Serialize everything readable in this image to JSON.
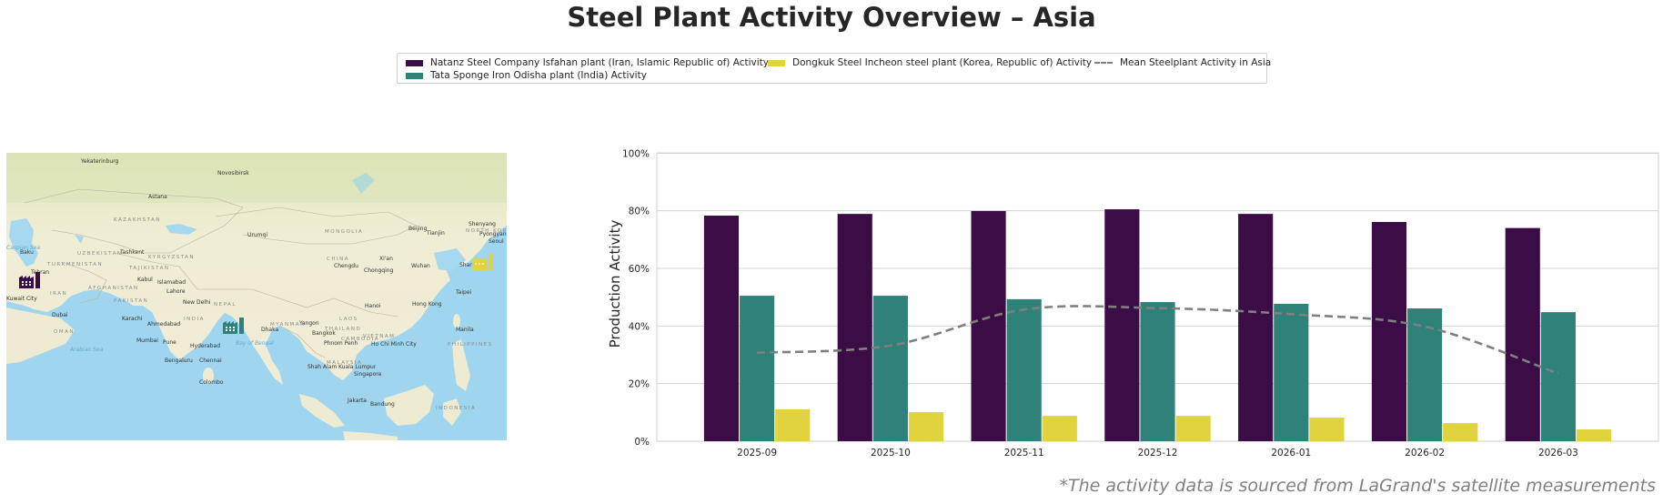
{
  "title": "Steel Plant Activity Overview – Asia",
  "legend": {
    "items": [
      {
        "label": "Natanz Steel Company Isfahan plant (Iran, Islamic Republic of) Activity",
        "color": "#3b0c46",
        "kind": "bar"
      },
      {
        "label": "Tata Sponge Iron Odisha plant (India) Activity",
        "color": "#2e8279",
        "kind": "bar"
      },
      {
        "label": "Dongkuk Steel Incheon steel plant (Korea, Republic of) Activity",
        "color": "#e0d33e",
        "kind": "bar"
      },
      {
        "label": "Mean Steelplant Activity in Asia",
        "color": "#7f7f7f",
        "kind": "dashed-line"
      }
    ]
  },
  "map": {
    "cities": [
      "Yekaterinburg",
      "Novosibirsk",
      "Astana",
      "Urumqi",
      "Baku",
      "Tashkent",
      "Tehran",
      "Kabul",
      "Islamabad",
      "Lahore",
      "New Delhi",
      "Kuwait City",
      "Dubai",
      "Karachi",
      "Ahmedabad",
      "Mumbai",
      "Pune",
      "Hyderabad",
      "Bengaluru",
      "Chennai",
      "Colombo",
      "Dhaka",
      "Beijing",
      "Tianjin",
      "Shenyang",
      "Pyongyang",
      "Seoul",
      "Shanghai",
      "Chengdu",
      "Chongqing",
      "Wuhan",
      "Xi'an",
      "Taipei",
      "Hong Kong",
      "Hanoi",
      "Yangon",
      "Bangkok",
      "Phnom Penh",
      "Ho Chi Minh City",
      "Manila",
      "Kuala Lumpur",
      "Singapore",
      "Shah Alam",
      "Jakarta",
      "Bandung"
    ],
    "countries": [
      "KAZAKHSTAN",
      "MONGOLIA",
      "UZBEKISTAN",
      "KYRGYZSTAN",
      "TAJIKISTAN",
      "TURKMENISTAN",
      "AFGHANISTAN",
      "PAKISTAN",
      "IRAN",
      "OMAN",
      "INDIA",
      "NEPAL",
      "CHINA",
      "MYANMAR (BURMA)",
      "LAOS",
      "THAILAND",
      "VIETNAM",
      "CAMBODIA",
      "MALAYSIA",
      "PHILIPPINES",
      "INDONESIA",
      "NORTH KOREA",
      "SOUTH KOREA",
      "BANGLADESH"
    ],
    "seas": [
      "Arabian Sea",
      "Bay of Bengal",
      "Caspian Sea"
    ],
    "markers": [
      {
        "name": "Natanz Steel Company Isfahan plant",
        "icon": "factory-icon",
        "color": "#3b0c46"
      },
      {
        "name": "Tata Sponge Iron Odisha plant",
        "icon": "factory-icon",
        "color": "#2e8279"
      },
      {
        "name": "Dongkuk Steel Incheon steel plant",
        "icon": "factory-icon",
        "color": "#e0d33e"
      }
    ]
  },
  "chart_data": {
    "type": "bar",
    "title": "",
    "xlabel": "",
    "ylabel": "Production Activity",
    "ylim": [
      0,
      100
    ],
    "yticks": [
      0,
      20,
      40,
      60,
      80,
      100
    ],
    "ytick_labels": [
      "0%",
      "20%",
      "40%",
      "60%",
      "80%",
      "100%"
    ],
    "grid": true,
    "legend_position": "top-center",
    "categories": [
      "2025-09",
      "2025-10",
      "2025-11",
      "2025-12",
      "2026-01",
      "2026-02",
      "2026-03"
    ],
    "series": [
      {
        "name": "Natanz Steel Company Isfahan plant (Iran, Islamic Republic of) Activity",
        "type": "bar",
        "color": "#3b0c46",
        "values": [
          78.3,
          78.9,
          79.9,
          80.5,
          78.9,
          76.1,
          74.0
        ]
      },
      {
        "name": "Tata Sponge Iron Odisha plant (India) Activity",
        "type": "bar",
        "color": "#2e8279",
        "values": [
          50.5,
          50.5,
          49.3,
          48.3,
          47.7,
          46.1,
          44.8
        ]
      },
      {
        "name": "Dongkuk Steel Incheon steel plant (Korea, Republic of) Activity",
        "type": "bar",
        "color": "#e0d33e",
        "values": [
          11.1,
          10.1,
          8.8,
          8.8,
          8.2,
          6.3,
          4.1
        ]
      },
      {
        "name": "Mean Steelplant Activity in Asia",
        "type": "line",
        "style": "dashed",
        "color": "#7f7f7f",
        "values": [
          30.7,
          33.2,
          45.7,
          46.2,
          44.1,
          39.8,
          23.5
        ]
      }
    ]
  },
  "footnote": "*The activity data is sourced from LaGrand's satellite measurements"
}
